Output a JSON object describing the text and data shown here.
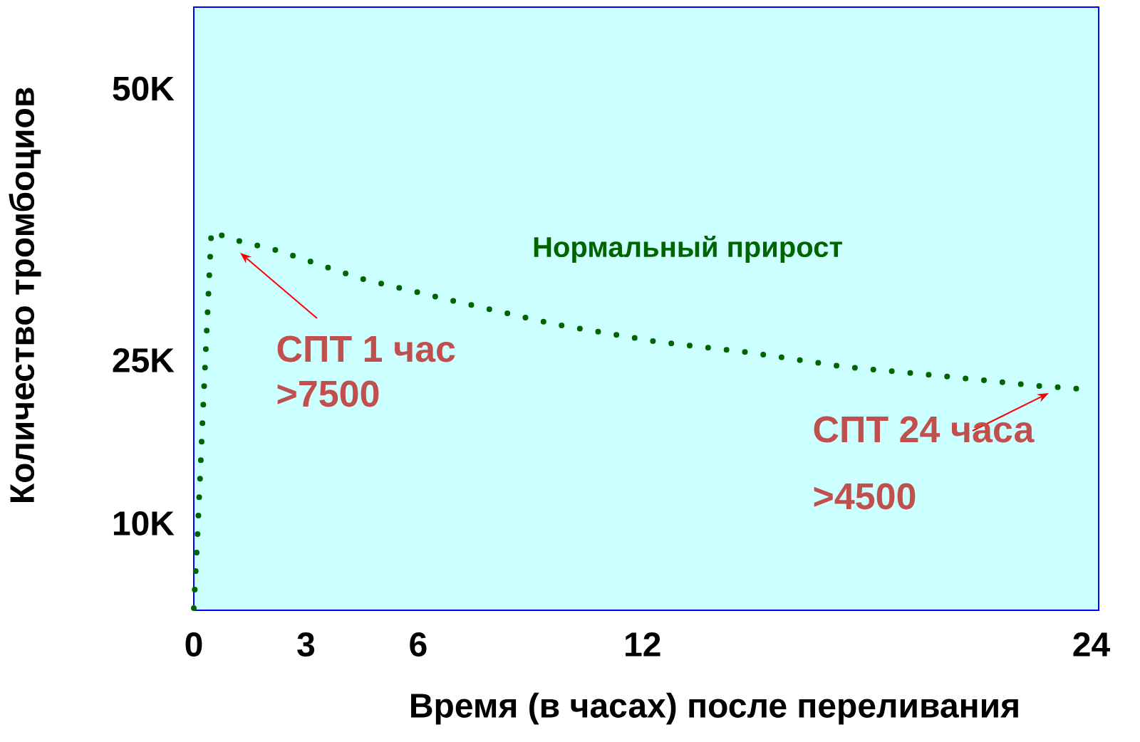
{
  "chart_data": {
    "type": "line",
    "xlabel": "Время (в часах) после переливания",
    "ylabel": "Количество тромбоциов",
    "xlim": [
      0,
      24.2
    ],
    "ylim": [
      2000,
      57500
    ],
    "xticks": [
      0,
      3,
      6,
      12,
      24
    ],
    "yticks": [
      {
        "value": 10000,
        "label": "10K"
      },
      {
        "value": 25000,
        "label": "25K"
      },
      {
        "value": 50000,
        "label": "50K"
      }
    ],
    "line_style": "dotted",
    "x": [
      0,
      0.09,
      0.26,
      0.47,
      0.95,
      2.24,
      4.49,
      6.9,
      9.67,
      12.4,
      14.9,
      17.4,
      19.9,
      22.4,
      23.6
    ],
    "series": [
      {
        "name": "Нормальный прирост",
        "color": "#006400",
        "values": [
          2200,
          8200,
          21400,
          36900,
          36200,
          35100,
          32500,
          30500,
          28300,
          26700,
          25700,
          24400,
          23600,
          22700,
          22400
        ]
      }
    ],
    "annotations": [
      "СПТ 1 час",
      ">7500",
      "СПТ 24 часа",
      ">4500"
    ]
  }
}
